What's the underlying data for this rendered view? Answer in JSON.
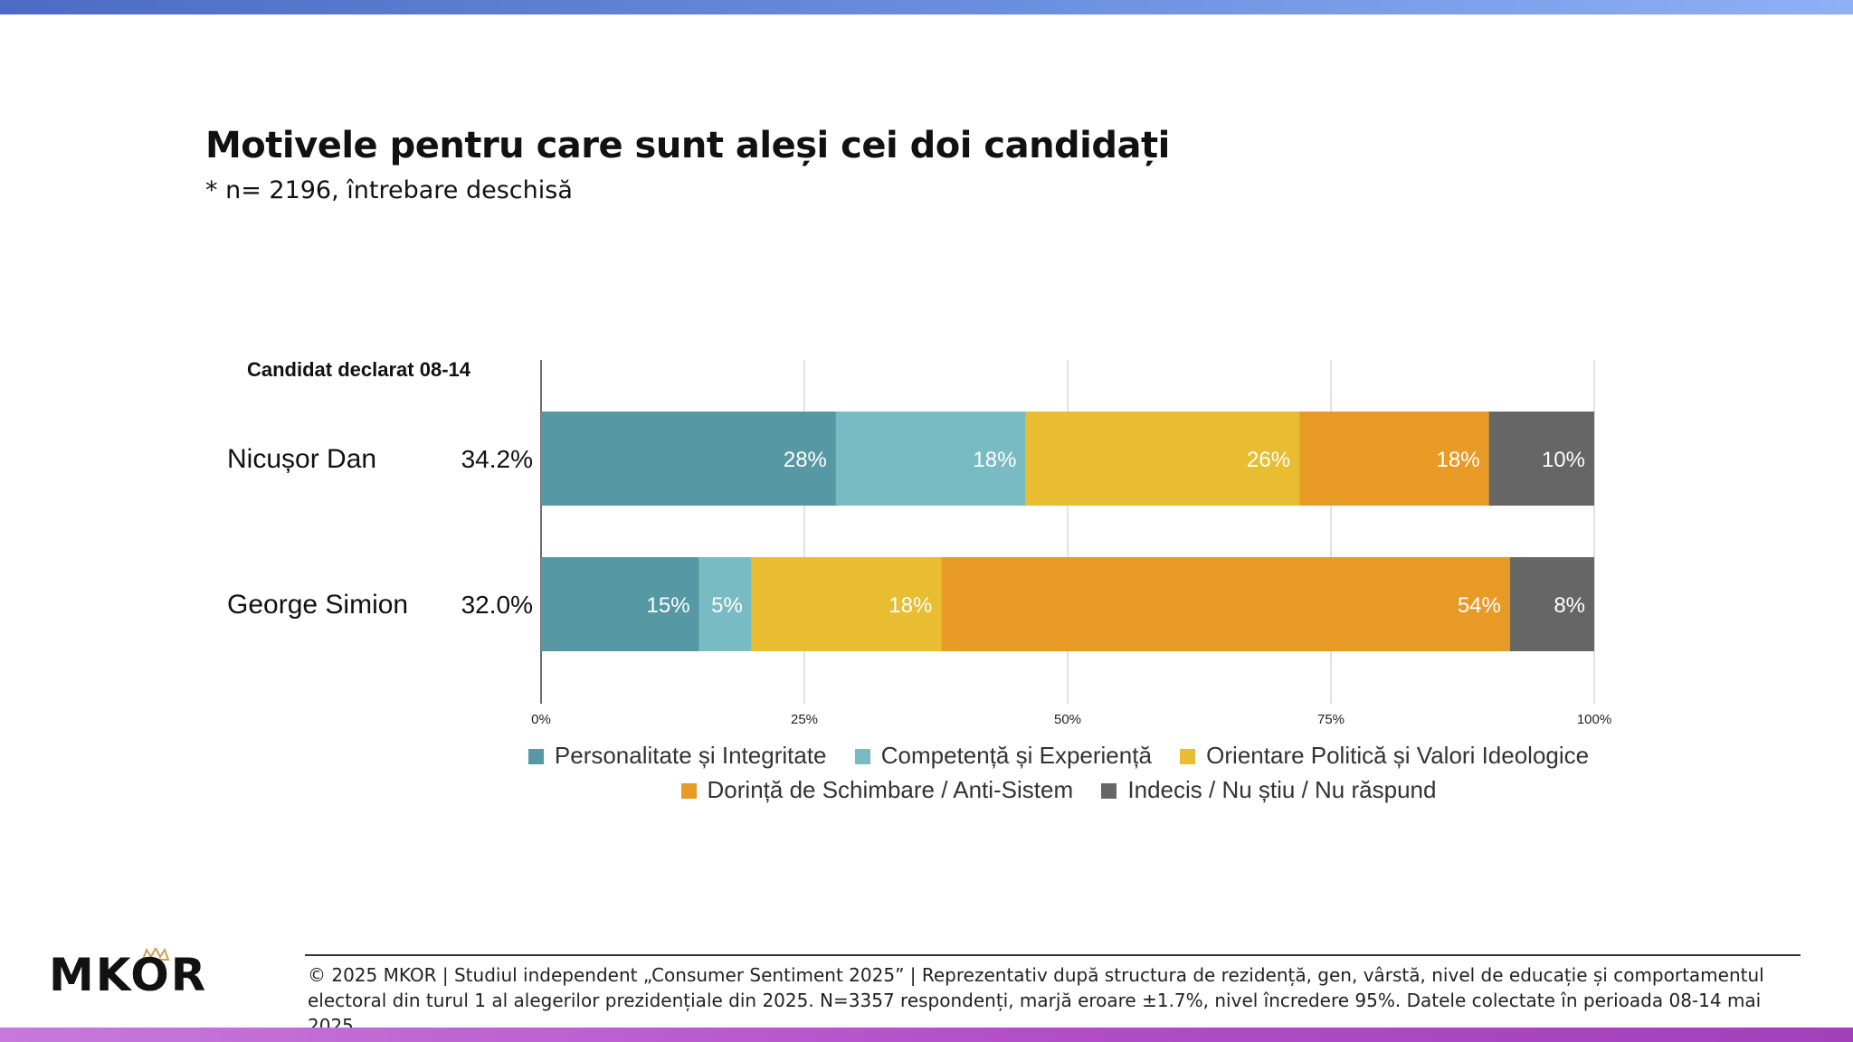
{
  "header": {
    "title": "Motivele pentru care sunt aleși cei doi candidați",
    "subtitle": "* n= 2196, întrebare deschisă"
  },
  "chart_data": {
    "type": "bar",
    "orientation": "horizontal",
    "stacked": true,
    "row_header": "Candidat declarat 08-14",
    "categories": [
      "Nicușor Dan",
      "George Simion"
    ],
    "category_shares": [
      "34.2%",
      "32.0%"
    ],
    "series": [
      {
        "name": "Personalitate și Integritate",
        "color": "#5699a5",
        "values": [
          28,
          15
        ],
        "labels": [
          "28%",
          "15%"
        ]
      },
      {
        "name": "Competență și Experiență",
        "color": "#79bbc3",
        "values": [
          18,
          5
        ],
        "labels": [
          "18%",
          "5%"
        ]
      },
      {
        "name": "Orientare Politică și Valori Ideologice",
        "color": "#e8bd31",
        "values": [
          26,
          18
        ],
        "labels": [
          "26%",
          "18%"
        ]
      },
      {
        "name": "Dorință de Schimbare / Anti-Sistem",
        "color": "#e89a27",
        "values": [
          18,
          54
        ],
        "labels": [
          "18%",
          "54%"
        ]
      },
      {
        "name": "Indecis / Nu știu / Nu răspund",
        "color": "#666666",
        "values": [
          10,
          8
        ],
        "labels": [
          "10%",
          "8%"
        ]
      }
    ],
    "x_ticks": [
      {
        "value": 0,
        "label": "0%"
      },
      {
        "value": 25,
        "label": "25%"
      },
      {
        "value": 50,
        "label": "50%"
      },
      {
        "value": 75,
        "label": "75%"
      },
      {
        "value": 100,
        "label": "100%"
      }
    ],
    "xlim": [
      0,
      100
    ],
    "grid": true,
    "legend_position": "bottom"
  },
  "footer": {
    "logo": "MKOR",
    "text": "© 2025 MKOR | Studiul independent „Consumer Sentiment 2025” | Reprezentativ după structura de rezidență, gen, vârstă, nivel de educație și comportamentul electoral din turul 1 al alegerilor prezidențiale din 2025. N=3357 respondenți, marjă eroare ±1.7%, nivel încredere 95%. Datele colectate în perioada 08-14 mai 2025."
  },
  "colors": {
    "top_bar": "#5a7fd6",
    "bottom_bar": "#b34ec9",
    "logo_crown": "#c9a15a"
  }
}
